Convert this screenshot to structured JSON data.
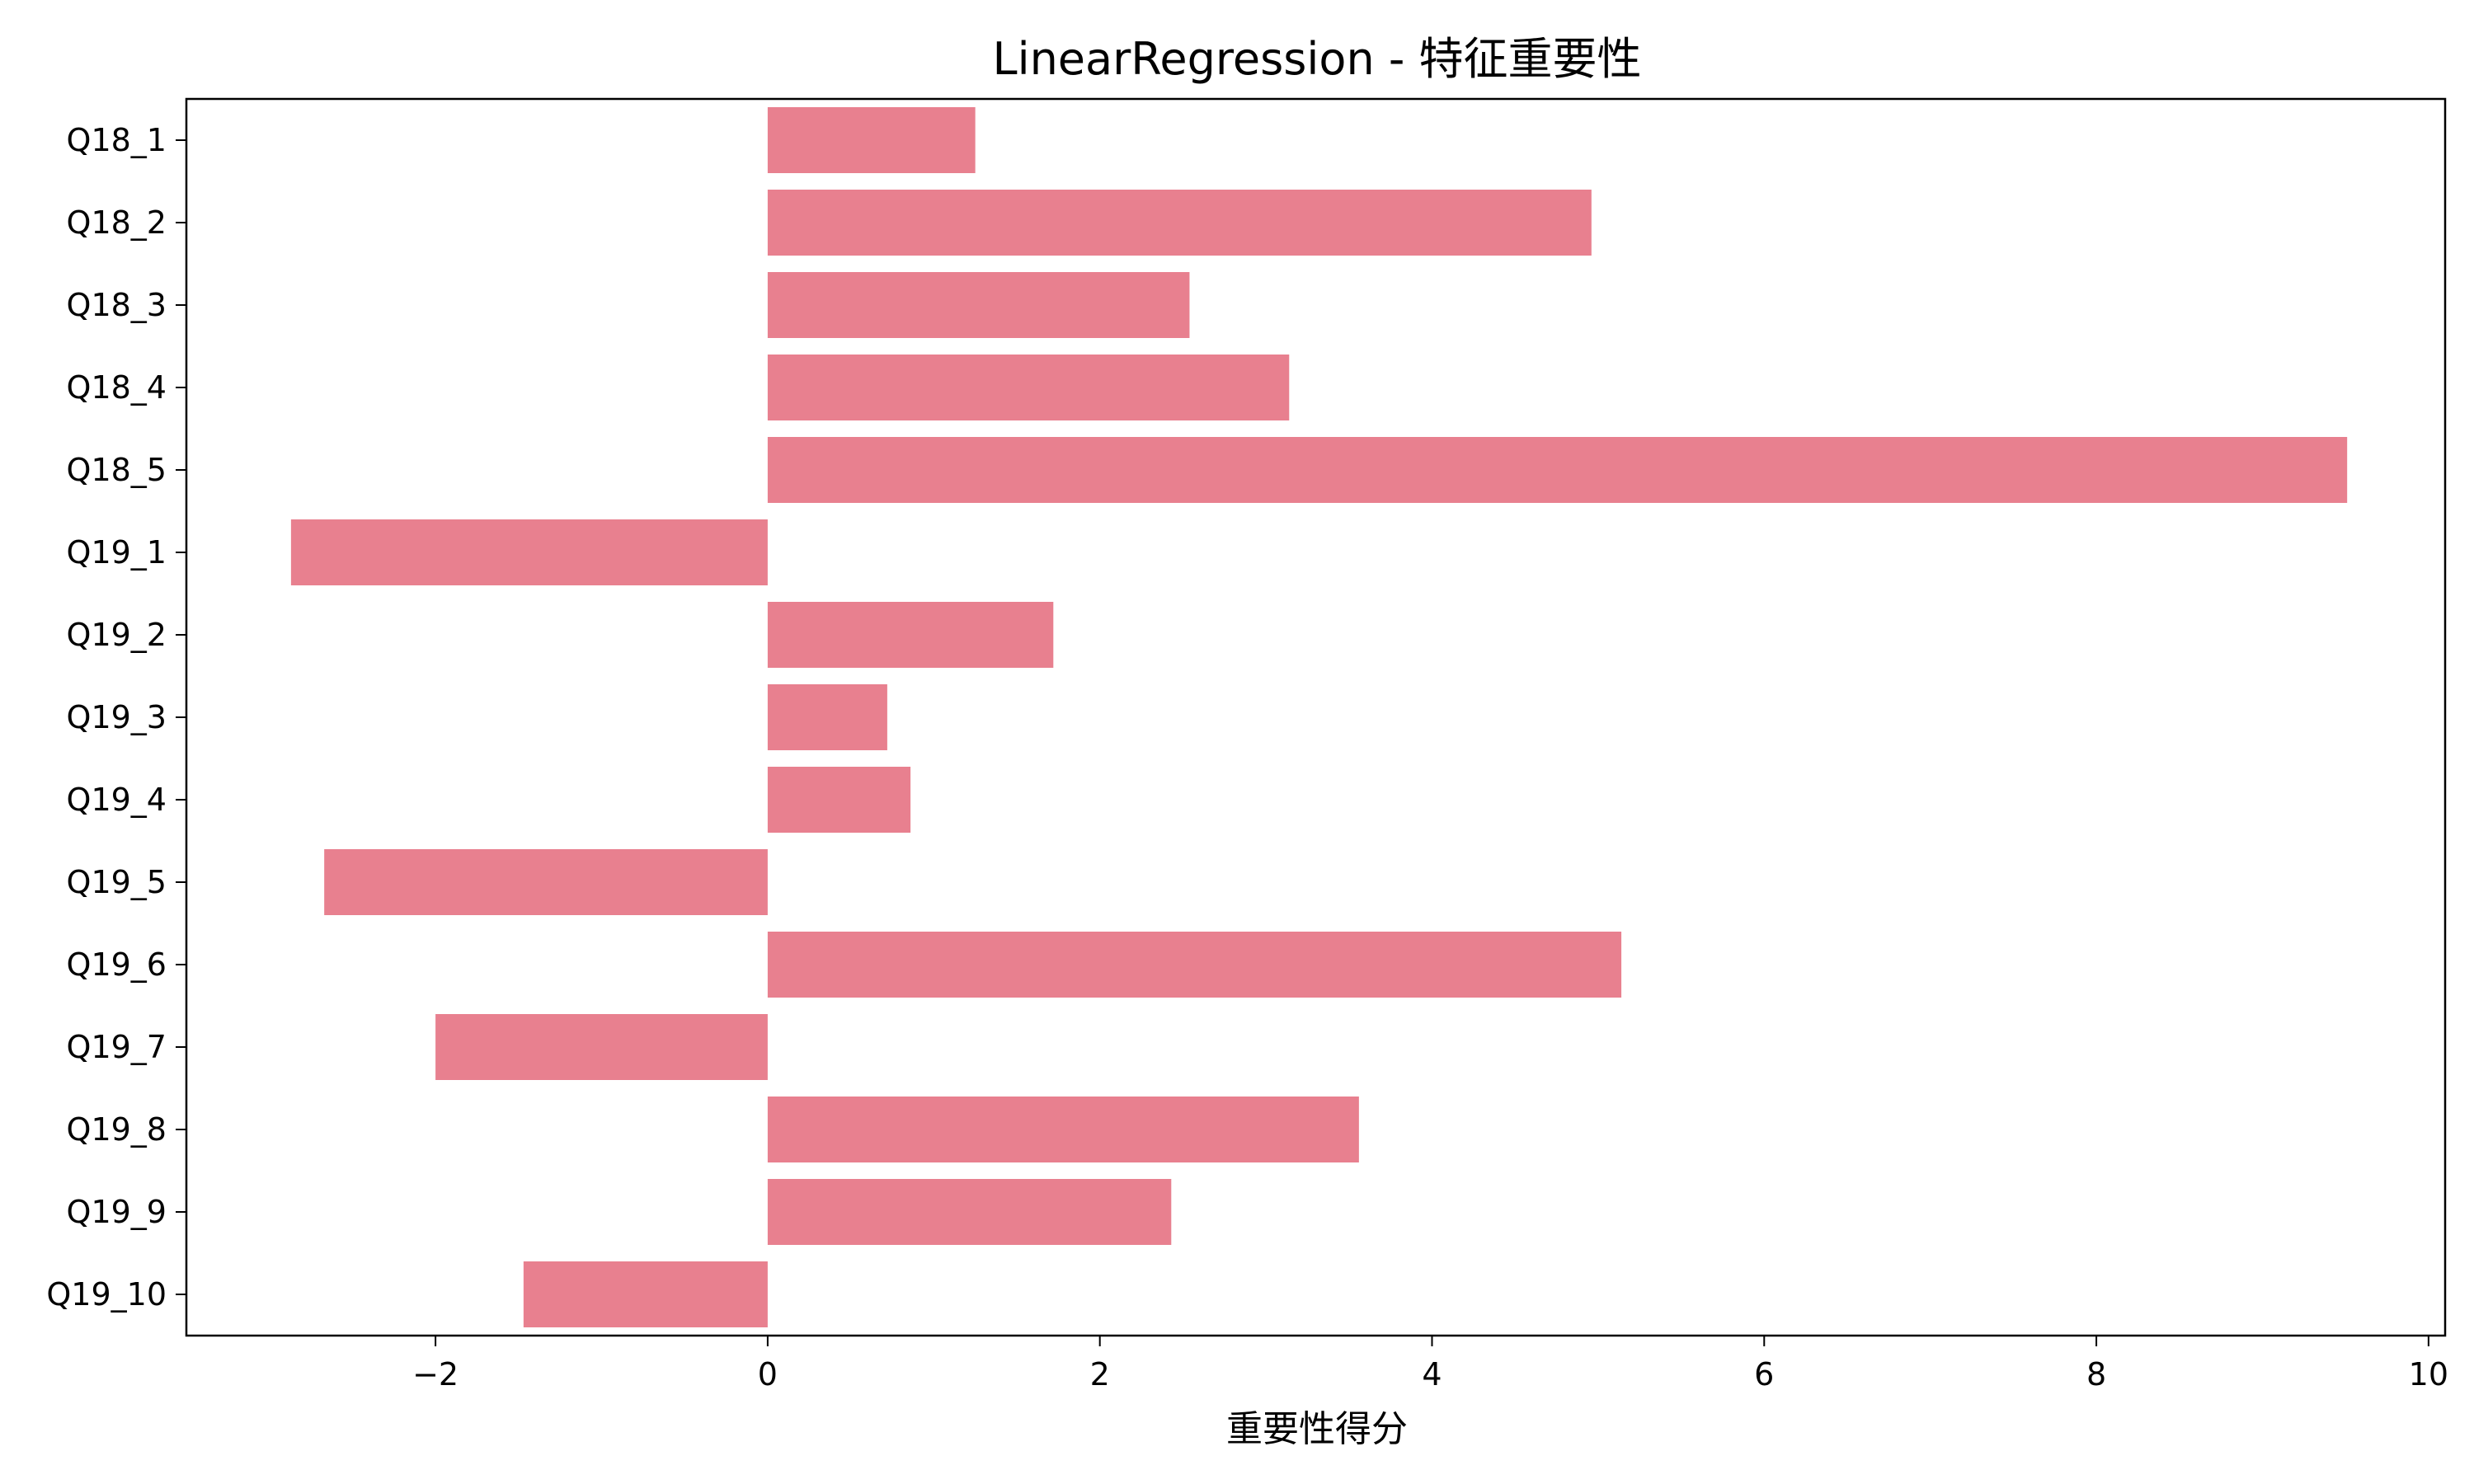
{
  "chart_data": {
    "type": "bar",
    "orientation": "horizontal",
    "title": "LinearRegression - 特征重要性",
    "xlabel": "重要性得分",
    "ylabel": "",
    "xlim": [
      -3.5,
      10.1
    ],
    "grid": false,
    "bar_color": "#e8808f",
    "categories": [
      "Q18_1",
      "Q18_2",
      "Q18_3",
      "Q18_4",
      "Q18_5",
      "Q19_1",
      "Q19_2",
      "Q19_3",
      "Q19_4",
      "Q19_5",
      "Q19_6",
      "Q19_7",
      "Q19_8",
      "Q19_9",
      "Q19_10"
    ],
    "values": [
      1.25,
      4.96,
      2.54,
      3.14,
      9.51,
      -2.87,
      1.72,
      0.72,
      0.86,
      -2.67,
      5.14,
      -2.0,
      3.56,
      2.43,
      -1.47
    ],
    "x_ticks": [
      -2,
      0,
      2,
      4,
      6,
      8,
      10
    ],
    "x_tick_labels": [
      "−2",
      "0",
      "2",
      "4",
      "6",
      "8",
      "10"
    ]
  }
}
